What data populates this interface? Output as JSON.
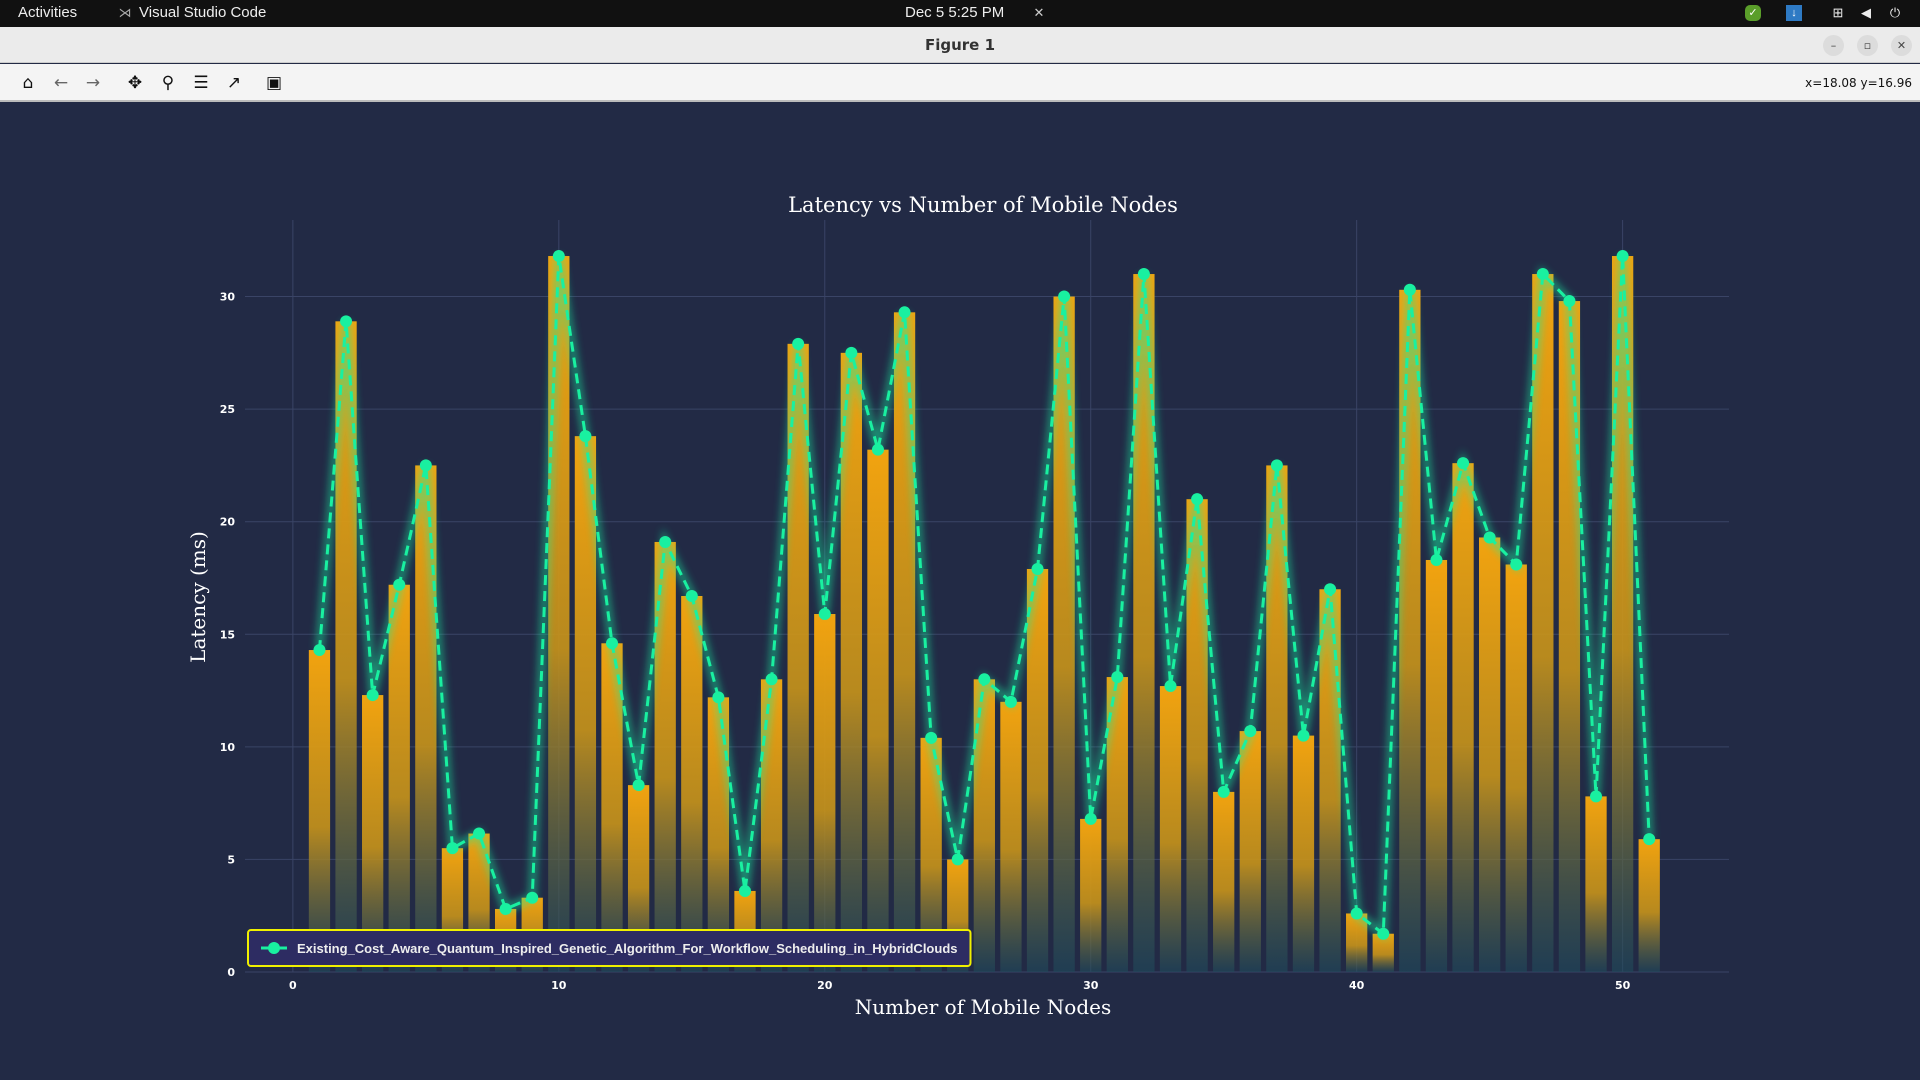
{
  "topbar": {
    "activities": "Activities",
    "app": "Visual Studio Code",
    "datetime": "Dec 5  5:25 PM"
  },
  "window": {
    "title": "Figure 1",
    "coords": "x=18.08 y=16.96"
  },
  "toolbar": [
    "home-icon",
    "back-icon",
    "forward-icon",
    "pan-icon",
    "zoom-icon",
    "configure-subplots-icon",
    "edit-axis-icon",
    "save-icon"
  ],
  "colors": {
    "background": "#222a45",
    "bar": "#f2a30f",
    "line": "#19f0a0",
    "legend_border": "#f0f000"
  },
  "chart_data": {
    "type": "bar+line",
    "title": "Latency vs Number of Mobile Nodes",
    "xlabel": "Number of Mobile Nodes",
    "ylabel": "Latency (ms)",
    "xlim": [
      -1.8,
      54
    ],
    "ylim": [
      0,
      33.4
    ],
    "xticks": [
      "0",
      "10",
      "20",
      "30",
      "40",
      "50"
    ],
    "yticks": [
      "0",
      "5",
      "10",
      "15",
      "20",
      "25",
      "30"
    ],
    "legend": {
      "label": "Existing_Cost_Aware_Quantum_Inspired_Genetic_Algorithm_For_Workflow_Scheduling_in_HybridClouds",
      "placement": "lower-left"
    },
    "grid": true,
    "x": [
      1,
      2,
      3,
      4,
      5,
      6,
      7,
      8,
      9,
      10,
      11,
      12,
      13,
      14,
      15,
      16,
      17,
      18,
      19,
      20,
      21,
      22,
      23,
      24,
      25,
      26,
      27,
      28,
      29,
      30,
      31,
      32,
      33,
      34,
      35,
      36,
      37,
      38,
      39,
      40,
      41,
      42,
      43,
      44,
      45,
      46,
      47,
      48,
      49,
      50,
      51
    ],
    "values": [
      14.3,
      28.9,
      12.3,
      17.2,
      22.5,
      5.5,
      6.15,
      2.8,
      3.3,
      31.8,
      23.8,
      14.6,
      8.3,
      19.1,
      16.7,
      12.2,
      3.6,
      13.0,
      27.9,
      15.9,
      27.5,
      23.2,
      29.3,
      10.4,
      5.0,
      13.0,
      12.0,
      17.9,
      30.0,
      6.8,
      13.1,
      31.0,
      12.7,
      21.0,
      8.0,
      10.7,
      22.5,
      10.5,
      17.0,
      2.6,
      1.7,
      30.3,
      18.3,
      22.6,
      19.3,
      18.1,
      31.0,
      29.8,
      7.8,
      31.8,
      5.9
    ]
  }
}
